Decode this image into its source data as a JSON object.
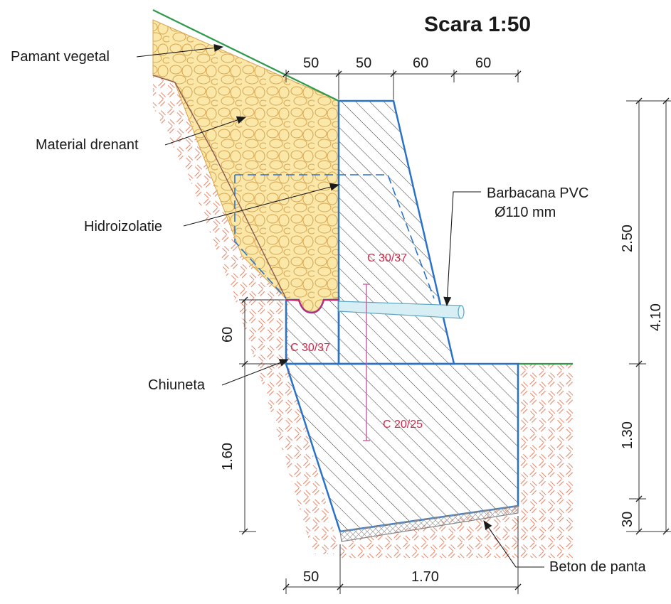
{
  "title": "Scara 1:50",
  "labels": {
    "topsoil": "Pamant vegetal",
    "drainage": "Material drenant",
    "waterproofing": "Hidroizolatie",
    "weephole_line1": "Barbacana PVC",
    "weephole_line2": "Ø110 mm",
    "gutter": "Chiuneta",
    "lean_concrete": "Beton de panta"
  },
  "materials": {
    "stem": "C 30/37",
    "gutter": "C 30/37",
    "foundation": "C 20/25"
  },
  "dimensions": {
    "top_1": "50",
    "top_2": "50",
    "top_3": "60",
    "top_4": "60",
    "bottom_1": "50",
    "bottom_2": "1.70",
    "left_1": "60",
    "left_2": "1.60",
    "right_1": "2.50",
    "right_2": "1.30",
    "right_3": "30",
    "right_total": "4.10"
  },
  "colors": {
    "wall_outline": "#2a72c8",
    "soil_hatch": "#e4876a",
    "drainage_fill": "#fbe7a8",
    "drainage_stroke": "#d8a450",
    "grass": "#2e9a4a",
    "material_text": "#d8264a",
    "waterproofing": "#cc2277"
  }
}
